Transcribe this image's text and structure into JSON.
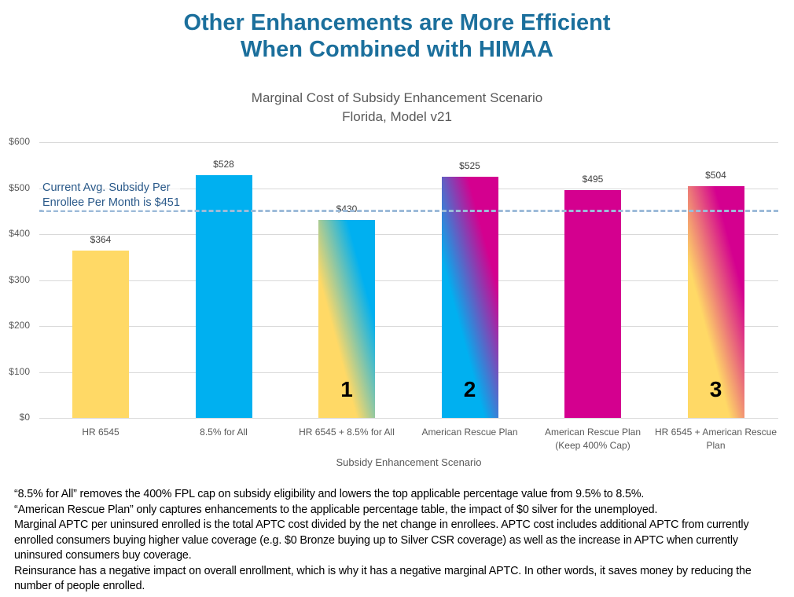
{
  "header": {
    "title_line1": "Other Enhancements are More Efficient",
    "title_line2": "When Combined with HIMAA"
  },
  "chart_data": {
    "type": "bar",
    "title": "Marginal Cost of Subsidy Enhancement Scenario",
    "subtitle": "Florida, Model v21",
    "xlabel": "Subsidy Enhancement Scenario",
    "ylim": [
      0,
      600
    ],
    "yticks": [
      "$0",
      "$100",
      "$200",
      "$300",
      "$400",
      "$500",
      "$600"
    ],
    "ytick_values": [
      0,
      100,
      200,
      300,
      400,
      500,
      600
    ],
    "grid": true,
    "categories": [
      [
        "HR 6545"
      ],
      [
        "8.5% for All"
      ],
      [
        "HR 6545 + 8.5% for All"
      ],
      [
        "American Rescue Plan"
      ],
      [
        "American Rescue Plan",
        "(Keep 400% Cap)"
      ],
      [
        "HR 6545 + American Rescue",
        "Plan"
      ]
    ],
    "values": [
      364,
      528,
      430,
      525,
      495,
      504
    ],
    "data_labels": [
      "$364",
      "$528",
      "$430",
      "$525",
      "$495",
      "$504"
    ],
    "bar_fills": [
      {
        "type": "solid",
        "colors": [
          "#ffd966"
        ]
      },
      {
        "type": "solid",
        "colors": [
          "#00b0f0"
        ]
      },
      {
        "type": "gradient",
        "colors": [
          "#ffd966",
          "#00b0f0"
        ]
      },
      {
        "type": "gradient",
        "colors": [
          "#00b0f0",
          "#d4008f"
        ]
      },
      {
        "type": "solid",
        "colors": [
          "#d4008f"
        ]
      },
      {
        "type": "gradient",
        "colors": [
          "#ffd966",
          "#d4008f"
        ]
      }
    ],
    "bar_numbers": [
      "",
      "",
      "1",
      "2",
      "",
      "3"
    ],
    "reference_line": {
      "value": 451,
      "label_line1": "Current Avg. Subsidy Per",
      "label_line2": "Enrollee Per Month is $451",
      "color": "#9dbbd9"
    }
  },
  "notes": [
    "“8.5% for All” removes the 400% FPL cap on subsidy eligibility and lowers the top applicable percentage value from 9.5% to 8.5%.",
    "“American Rescue Plan” only captures enhancements to the applicable percentage table, the impact of $0 silver for the unemployed.",
    "Marginal APTC per uninsured enrolled is the total APTC cost divided by the net change in enrollees. APTC cost includes additional APTC from currently enrolled consumers buying higher value coverage (e.g. $0 Bronze buying up to Silver CSR coverage) as well as the increase in APTC when currently uninsured consumers buy coverage.",
    "Reinsurance has a negative impact on overall enrollment, which is why it has a negative marginal APTC.  In other words, it saves money by reducing the number of people enrolled."
  ]
}
